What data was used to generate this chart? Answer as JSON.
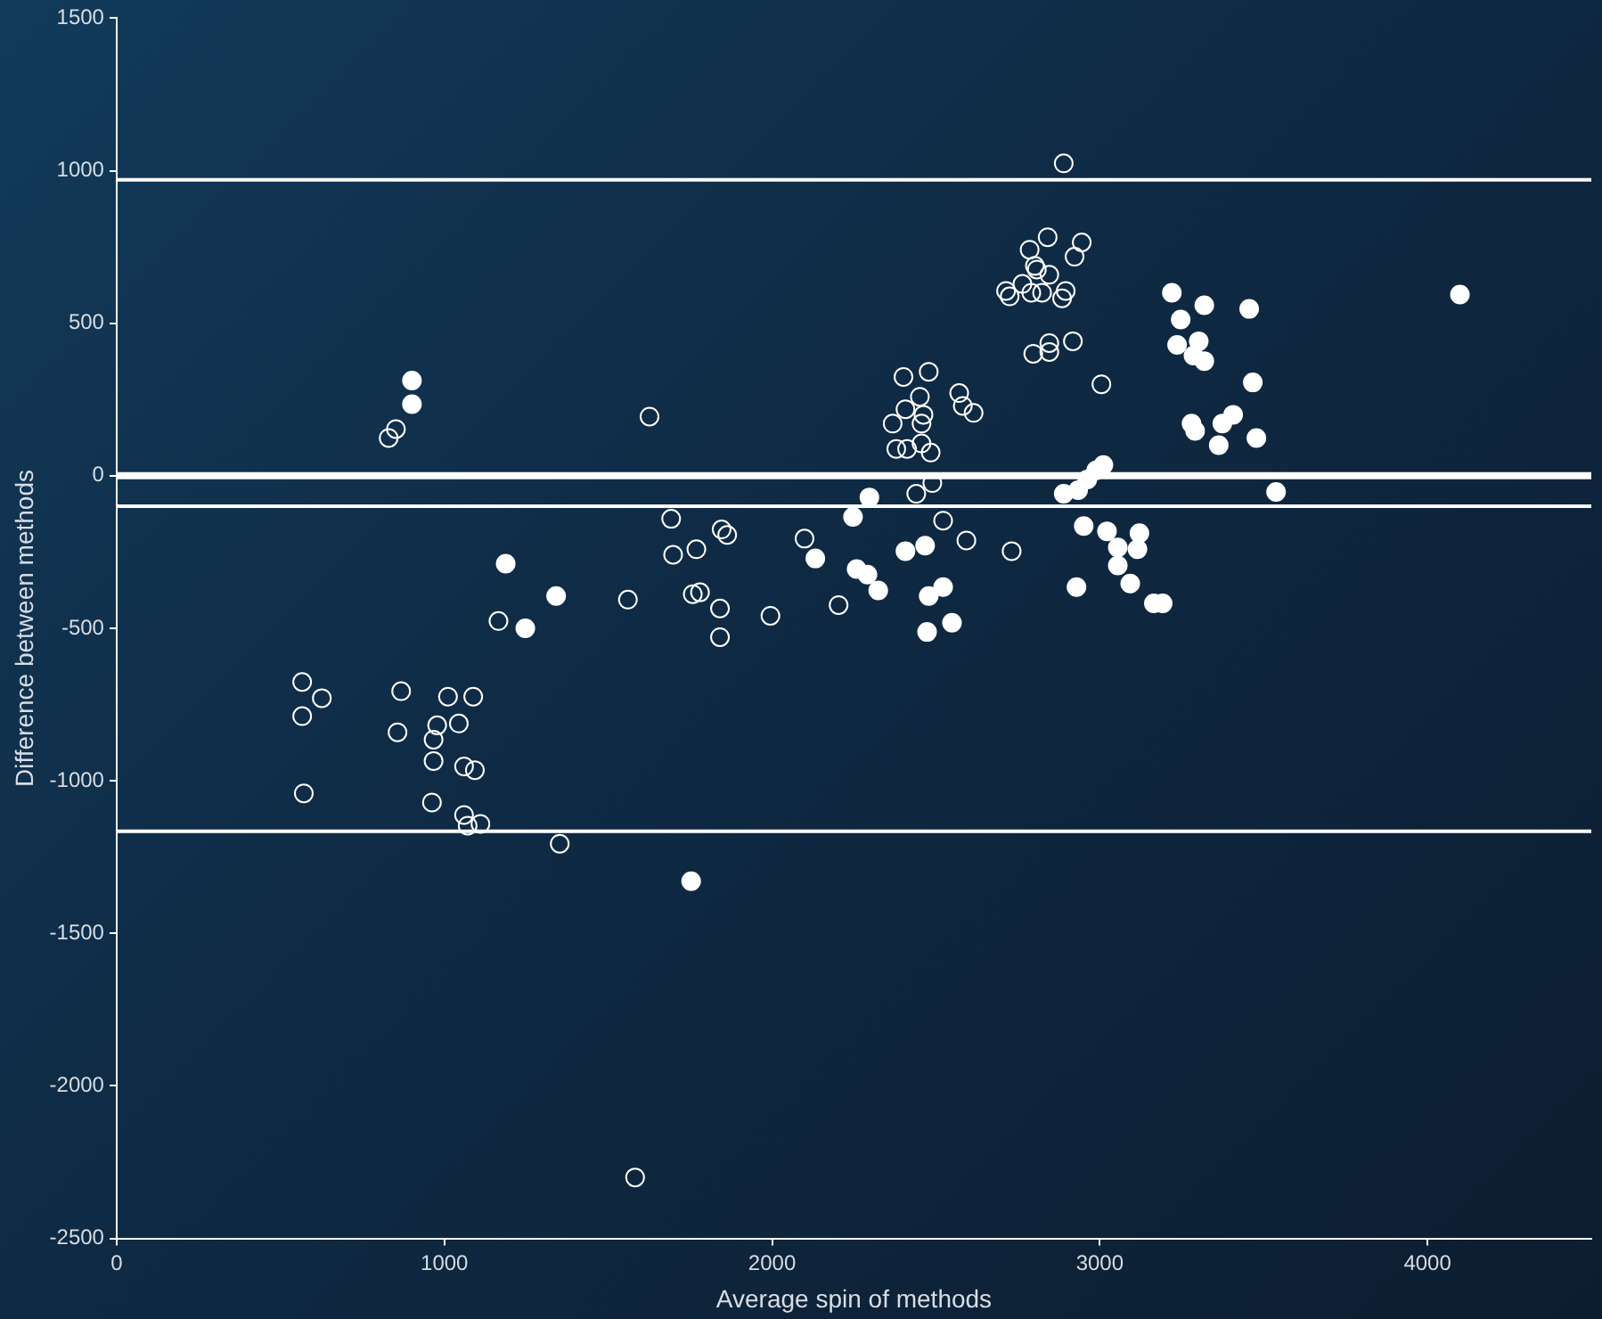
{
  "chart_data": {
    "type": "scatter",
    "xlabel": "Average spin of methods",
    "ylabel": "Difference between methods",
    "xlim": [
      0,
      4500
    ],
    "ylim": [
      -2500,
      1500
    ],
    "xticks": [
      0,
      1000,
      2000,
      3000,
      4000
    ],
    "yticks": [
      -2500,
      -2000,
      -1500,
      -1000,
      -500,
      0,
      500,
      1000,
      1500
    ],
    "grid": false,
    "legend": false,
    "marker": "circle",
    "ref_lines": [
      {
        "axis": "y",
        "value": 970,
        "color": "#ffffff"
      },
      {
        "axis": "y",
        "value": 0,
        "color": "#ffffff"
      },
      {
        "axis": "y",
        "value": -100,
        "color": "#ffffff"
      },
      {
        "axis": "y",
        "value": -1165,
        "color": "#ffffff"
      }
    ],
    "series": [
      {
        "color": "#ffffff",
        "x": [
          852,
          830,
          1626,
          1692,
          1698,
          1769,
          1846,
          1863,
          1560,
          1758,
          1780,
          1841,
          1995,
          1841,
          1165,
          566,
          626,
          566,
          868,
          1011,
          1088,
          978,
          1044,
          857,
          967,
          967,
          1060,
          1093,
          571,
          962,
          1060,
          1071,
          1110,
          1352,
          1582,
          2890,
          2841,
          2945,
          2786,
          2923,
          2802,
          2808,
          2846,
          2764,
          2714,
          2725,
          2791,
          2824,
          2896,
          2885,
          2846,
          2797,
          2846,
          2918,
          3005,
          2401,
          2478,
          2571,
          2451,
          2407,
          2582,
          2615,
          2462,
          2368,
          2456,
          2379,
          2412,
          2456,
          2484,
          2489,
          2440,
          2522,
          2099,
          2593,
          2731,
          2203
        ],
        "values": [
          153,
          124,
          194,
          -141,
          -259,
          -241,
          -176,
          -194,
          -406,
          -388,
          -382,
          -435,
          -459,
          -529,
          -476,
          -676,
          -729,
          -788,
          -706,
          -724,
          -724,
          -818,
          -812,
          -841,
          -865,
          -935,
          -953,
          -965,
          -1041,
          -1071,
          -1112,
          -1147,
          -1141,
          -1206,
          -2300,
          1024,
          782,
          765,
          741,
          718,
          688,
          676,
          659,
          629,
          606,
          588,
          600,
          600,
          606,
          582,
          435,
          400,
          406,
          441,
          300,
          324,
          341,
          271,
          259,
          218,
          229,
          206,
          200,
          171,
          171,
          88,
          88,
          106,
          76,
          -24,
          -59,
          -147,
          -206,
          -212,
          -247,
          -424
        ]
      },
      {
        "color": "#ffffff",
        "x": [
          901,
          901,
          1187,
          1341,
          1247,
          1753,
          3220,
          3319,
          3456,
          3247,
          3302,
          3236,
          3286,
          3319,
          3467,
          3280,
          3291,
          3374,
          3407,
          3363,
          3478,
          3538,
          2890,
          2934,
          2962,
          2989,
          3011,
          2297,
          2247,
          2132,
          2407,
          2467,
          2258,
          2291,
          2324,
          2522,
          2478,
          2549,
          2473,
          2929,
          2951,
          3022,
          3121,
          3055,
          3115,
          3055,
          3093,
          3165,
          3192,
          4099
        ],
        "values": [
          312,
          235,
          -288,
          -394,
          -500,
          -1329,
          600,
          559,
          547,
          512,
          441,
          429,
          394,
          376,
          306,
          171,
          147,
          171,
          200,
          100,
          124,
          -53,
          -59,
          -47,
          -12,
          18,
          35,
          -71,
          -135,
          -271,
          -247,
          -229,
          -306,
          -324,
          -376,
          -365,
          -394,
          -482,
          -512,
          -365,
          -165,
          -182,
          -188,
          -235,
          -241,
          -294,
          -353,
          -418,
          -418,
          594
        ]
      }
    ]
  }
}
